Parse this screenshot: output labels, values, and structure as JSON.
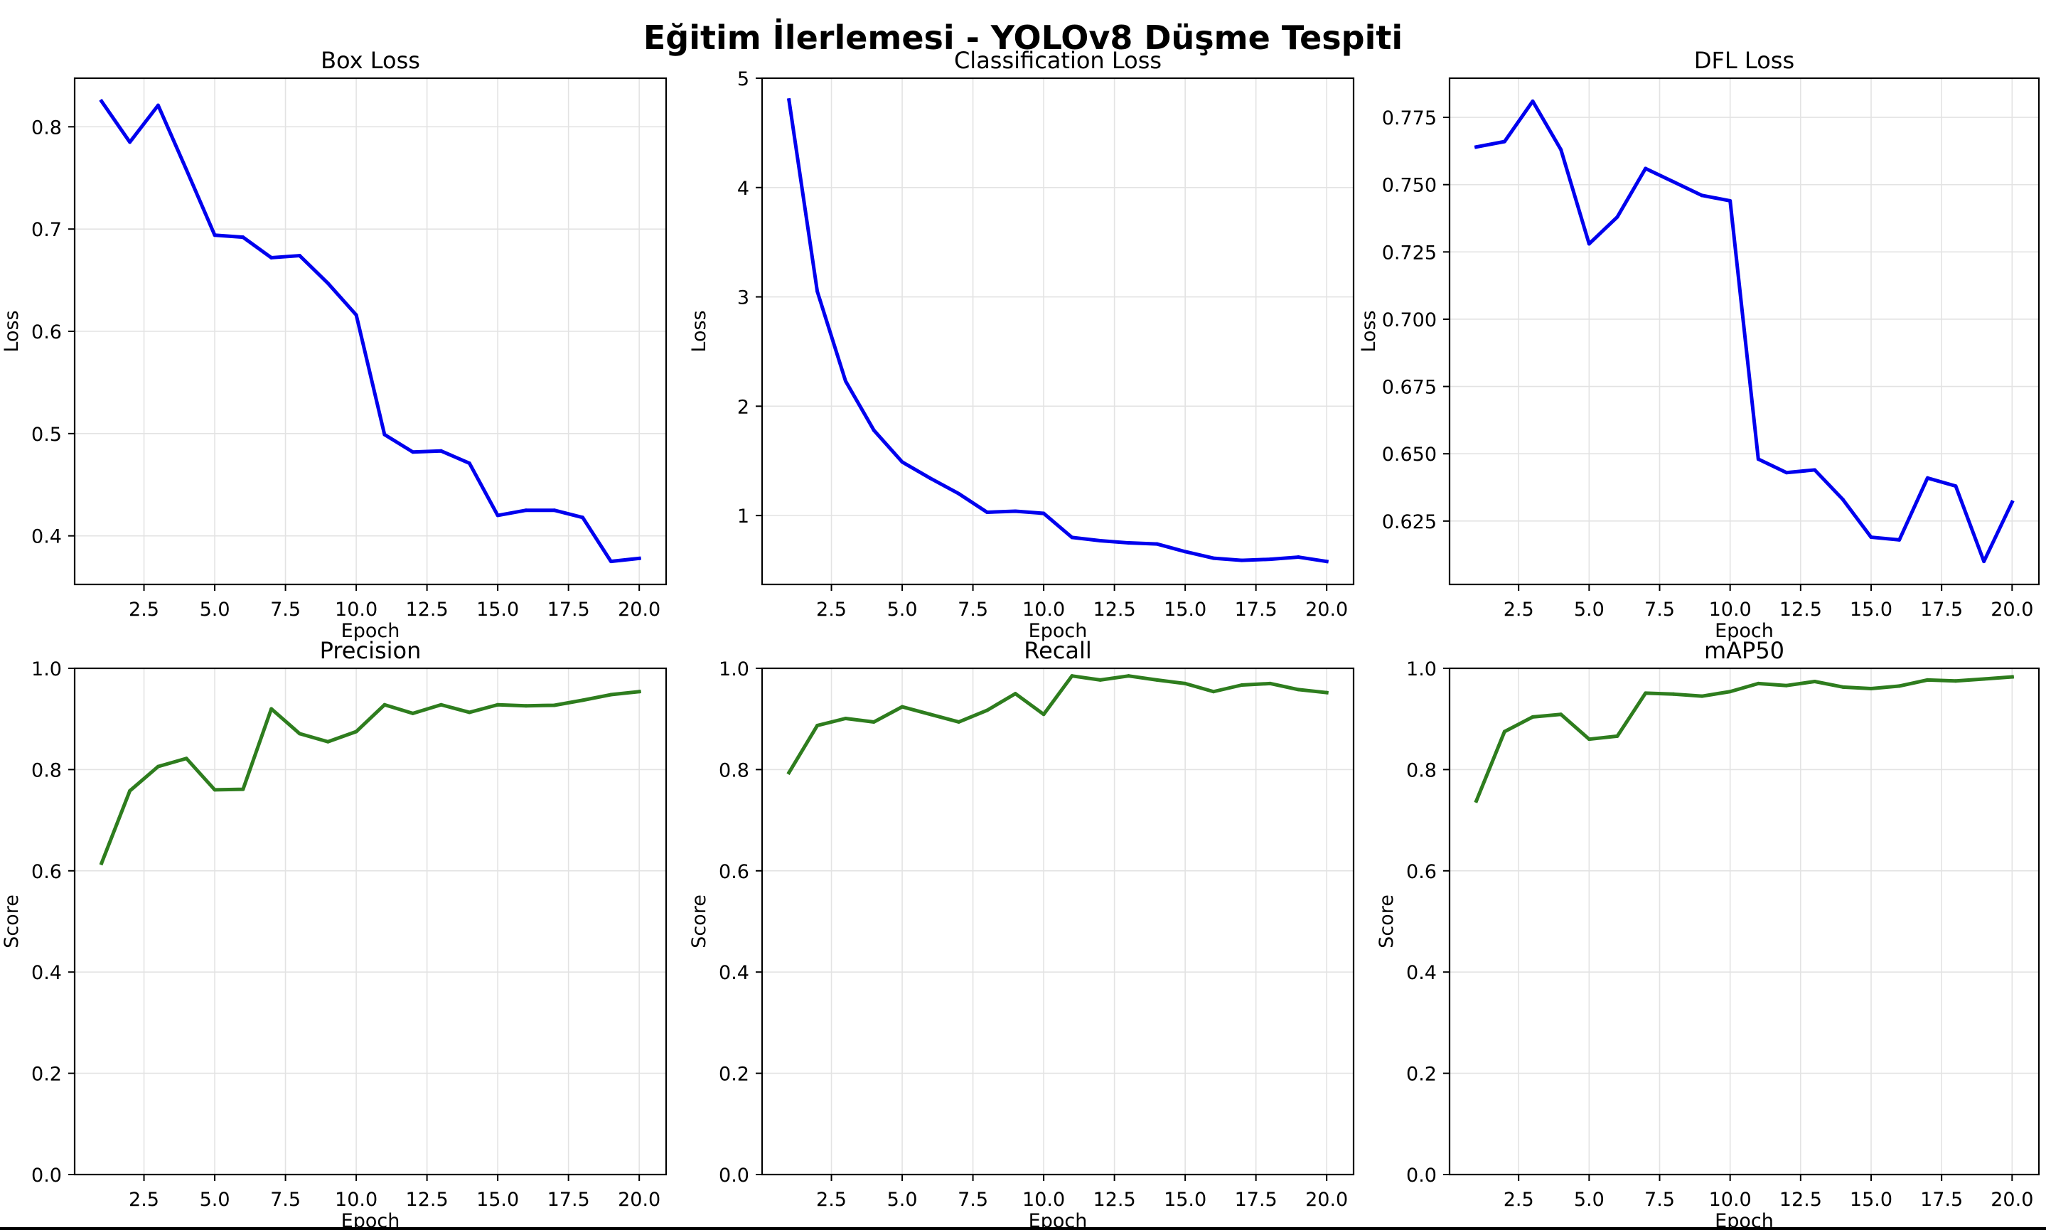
{
  "suptitle": "Eğitim İlerlemesi - YOLOv8 Düşme Tespiti",
  "chart_data": [
    {
      "type": "line",
      "title": "Box Loss",
      "xlabel": "Epoch",
      "ylabel": "Loss",
      "color": "#0000ee",
      "x": [
        1,
        2,
        3,
        4,
        5,
        6,
        7,
        8,
        9,
        10,
        11,
        12,
        13,
        14,
        15,
        16,
        17,
        18,
        19,
        20
      ],
      "values": [
        0.825,
        0.785,
        0.821,
        0.758,
        0.694,
        0.692,
        0.672,
        0.674,
        0.647,
        0.616,
        0.499,
        0.482,
        0.483,
        0.471,
        0.42,
        0.425,
        0.425,
        0.418,
        0.375,
        0.378
      ],
      "xlim": [
        0.05,
        20.95
      ],
      "ylim": [
        0.3525,
        0.8475
      ],
      "xticks": [
        2.5,
        5.0,
        7.5,
        10.0,
        12.5,
        15.0,
        17.5,
        20.0
      ],
      "xtick_labels": [
        "2.5",
        "5.0",
        "7.5",
        "10.0",
        "12.5",
        "15.0",
        "17.5",
        "20.0"
      ],
      "yticks": [
        0.4,
        0.5,
        0.6,
        0.7,
        0.8
      ],
      "ytick_labels": [
        "0.4",
        "0.5",
        "0.6",
        "0.7",
        "0.8"
      ],
      "grid": true
    },
    {
      "type": "line",
      "title": "Classification Loss",
      "xlabel": "Epoch",
      "ylabel": "Loss",
      "color": "#0000ee",
      "x": [
        1,
        2,
        3,
        4,
        5,
        6,
        7,
        8,
        9,
        10,
        11,
        12,
        13,
        14,
        15,
        16,
        17,
        18,
        19,
        20
      ],
      "values": [
        4.8,
        3.05,
        2.23,
        1.78,
        1.49,
        1.34,
        1.2,
        1.03,
        1.04,
        1.02,
        0.8,
        0.77,
        0.75,
        0.74,
        0.67,
        0.61,
        0.59,
        0.6,
        0.62,
        0.58
      ],
      "xlim": [
        0.05,
        20.95
      ],
      "ylim": [
        0.37,
        5.0
      ],
      "xticks": [
        2.5,
        5.0,
        7.5,
        10.0,
        12.5,
        15.0,
        17.5,
        20.0
      ],
      "xtick_labels": [
        "2.5",
        "5.0",
        "7.5",
        "10.0",
        "12.5",
        "15.0",
        "17.5",
        "20.0"
      ],
      "yticks": [
        1,
        2,
        3,
        4,
        5
      ],
      "ytick_labels": [
        "1",
        "2",
        "3",
        "4",
        "5"
      ],
      "grid": true
    },
    {
      "type": "line",
      "title": "DFL Loss",
      "xlabel": "Epoch",
      "ylabel": "Loss",
      "color": "#0000ee",
      "x": [
        1,
        2,
        3,
        4,
        5,
        6,
        7,
        8,
        9,
        10,
        11,
        12,
        13,
        14,
        15,
        16,
        17,
        18,
        19,
        20
      ],
      "values": [
        0.764,
        0.766,
        0.781,
        0.763,
        0.728,
        0.738,
        0.756,
        0.751,
        0.746,
        0.744,
        0.648,
        0.643,
        0.644,
        0.633,
        0.619,
        0.618,
        0.641,
        0.638,
        0.61,
        0.632
      ],
      "xlim": [
        0.05,
        20.95
      ],
      "ylim": [
        0.60145,
        0.78955
      ],
      "xticks": [
        2.5,
        5.0,
        7.5,
        10.0,
        12.5,
        15.0,
        17.5,
        20.0
      ],
      "xtick_labels": [
        "2.5",
        "5.0",
        "7.5",
        "10.0",
        "12.5",
        "15.0",
        "17.5",
        "20.0"
      ],
      "yticks": [
        0.625,
        0.65,
        0.675,
        0.7,
        0.725,
        0.75,
        0.775
      ],
      "ytick_labels": [
        "0.625",
        "0.650",
        "0.675",
        "0.700",
        "0.725",
        "0.750",
        "0.775"
      ],
      "grid": true
    },
    {
      "type": "line",
      "title": "Precision",
      "xlabel": "Epoch",
      "ylabel": "Score",
      "color": "#2e7d1e",
      "x": [
        1,
        2,
        3,
        4,
        5,
        6,
        7,
        8,
        9,
        10,
        11,
        12,
        13,
        14,
        15,
        16,
        17,
        18,
        19,
        20
      ],
      "values": [
        0.615,
        0.758,
        0.806,
        0.822,
        0.76,
        0.761,
        0.92,
        0.871,
        0.855,
        0.875,
        0.928,
        0.911,
        0.928,
        0.913,
        0.928,
        0.926,
        0.927,
        0.937,
        0.948,
        0.954
      ],
      "xlim": [
        0.05,
        20.95
      ],
      "ylim": [
        0.0,
        1.0
      ],
      "xticks": [
        2.5,
        5.0,
        7.5,
        10.0,
        12.5,
        15.0,
        17.5,
        20.0
      ],
      "xtick_labels": [
        "2.5",
        "5.0",
        "7.5",
        "10.0",
        "12.5",
        "15.0",
        "17.5",
        "20.0"
      ],
      "yticks": [
        0.0,
        0.2,
        0.4,
        0.6,
        0.8,
        1.0
      ],
      "ytick_labels": [
        "0.0",
        "0.2",
        "0.4",
        "0.6",
        "0.8",
        "1.0"
      ],
      "grid": true
    },
    {
      "type": "line",
      "title": "Recall",
      "xlabel": "Epoch",
      "ylabel": "Score",
      "color": "#2e7d1e",
      "x": [
        1,
        2,
        3,
        4,
        5,
        6,
        7,
        8,
        9,
        10,
        11,
        12,
        13,
        14,
        15,
        16,
        17,
        18,
        19,
        20
      ],
      "values": [
        0.794,
        0.887,
        0.901,
        0.894,
        0.924,
        0.909,
        0.894,
        0.917,
        0.95,
        0.909,
        0.985,
        0.977,
        0.985,
        0.977,
        0.97,
        0.954,
        0.967,
        0.97,
        0.958,
        0.952
      ],
      "xlim": [
        0.05,
        20.95
      ],
      "ylim": [
        0.0,
        1.0
      ],
      "xticks": [
        2.5,
        5.0,
        7.5,
        10.0,
        12.5,
        15.0,
        17.5,
        20.0
      ],
      "xtick_labels": [
        "2.5",
        "5.0",
        "7.5",
        "10.0",
        "12.5",
        "15.0",
        "17.5",
        "20.0"
      ],
      "yticks": [
        0.0,
        0.2,
        0.4,
        0.6,
        0.8,
        1.0
      ],
      "ytick_labels": [
        "0.0",
        "0.2",
        "0.4",
        "0.6",
        "0.8",
        "1.0"
      ],
      "grid": true
    },
    {
      "type": "line",
      "title": "mAP50",
      "xlabel": "Epoch",
      "ylabel": "Score",
      "color": "#2e7d1e",
      "x": [
        1,
        2,
        3,
        4,
        5,
        6,
        7,
        8,
        9,
        10,
        11,
        12,
        13,
        14,
        15,
        16,
        17,
        18,
        19,
        20
      ],
      "values": [
        0.738,
        0.875,
        0.904,
        0.909,
        0.86,
        0.866,
        0.951,
        0.949,
        0.945,
        0.954,
        0.97,
        0.966,
        0.974,
        0.963,
        0.96,
        0.965,
        0.977,
        0.975,
        0.979,
        0.983
      ],
      "xlim": [
        0.05,
        20.95
      ],
      "ylim": [
        0.0,
        1.0
      ],
      "xticks": [
        2.5,
        5.0,
        7.5,
        10.0,
        12.5,
        15.0,
        17.5,
        20.0
      ],
      "xtick_labels": [
        "2.5",
        "5.0",
        "7.5",
        "10.0",
        "12.5",
        "15.0",
        "17.5",
        "20.0"
      ],
      "yticks": [
        0.0,
        0.2,
        0.4,
        0.6,
        0.8,
        1.0
      ],
      "ytick_labels": [
        "0.0",
        "0.2",
        "0.4",
        "0.6",
        "0.8",
        "1.0"
      ],
      "grid": true
    }
  ]
}
